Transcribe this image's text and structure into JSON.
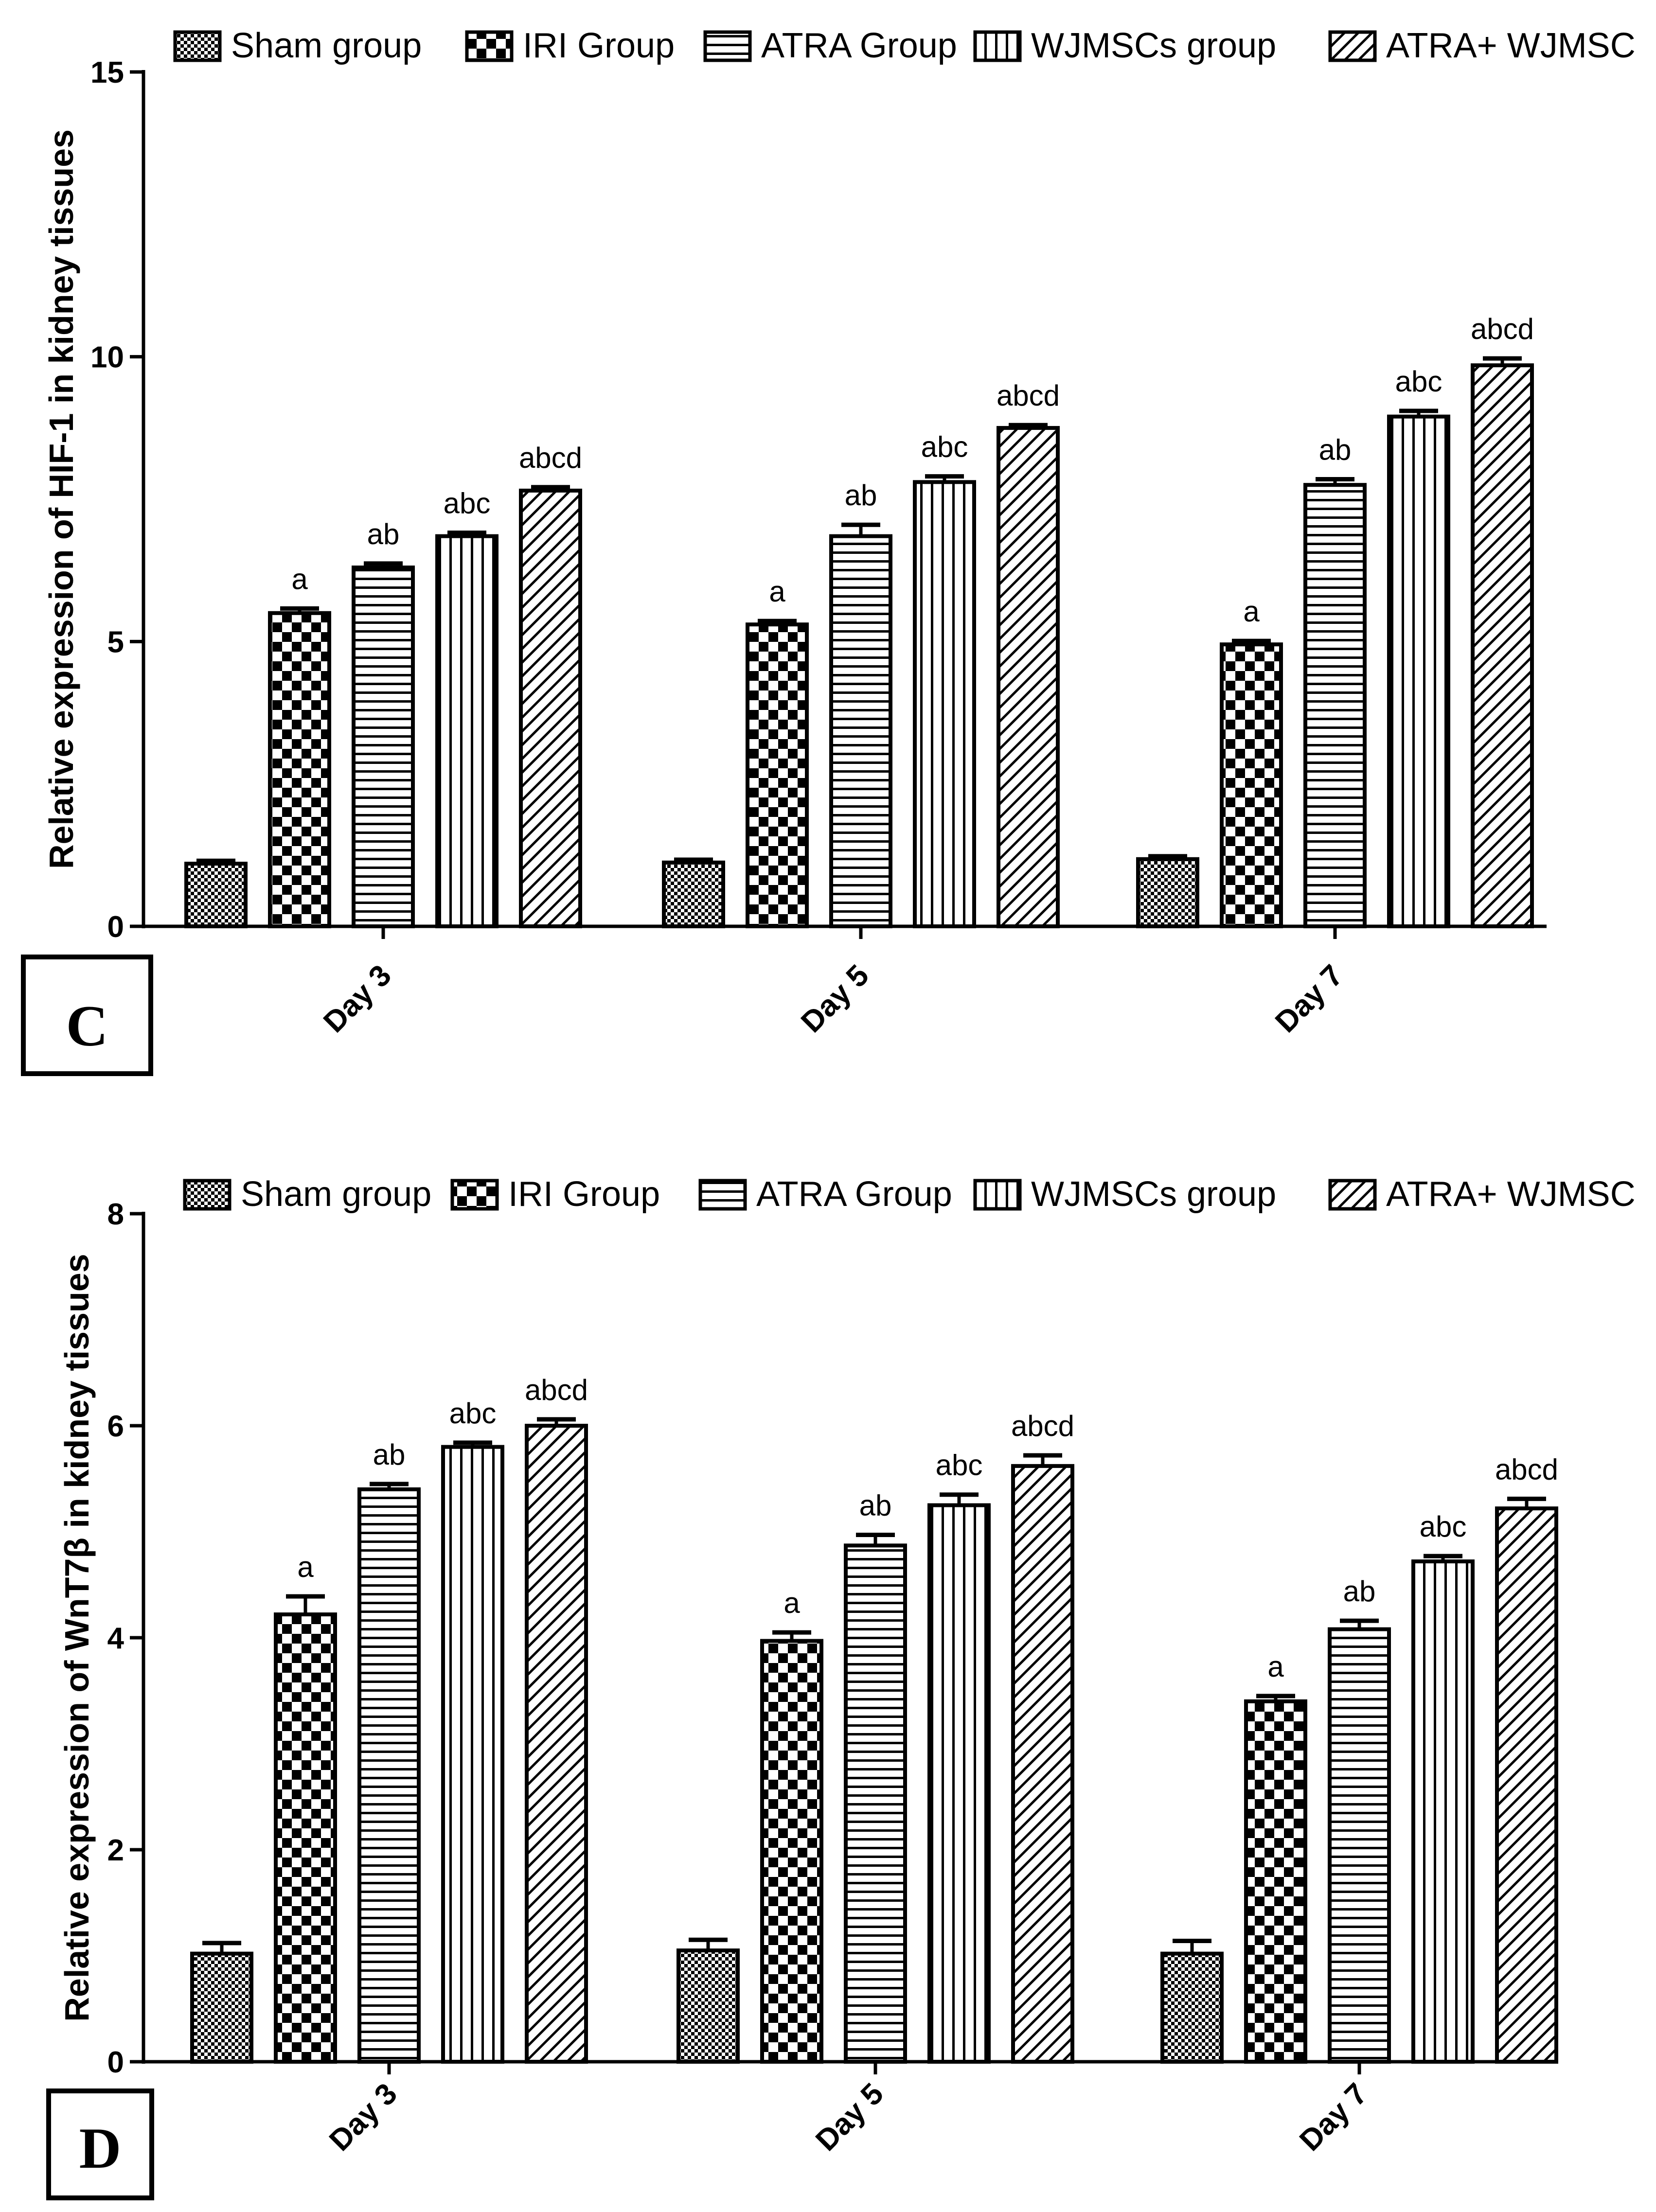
{
  "chart_data": [
    {
      "type": "bar",
      "panel_label": "C",
      "title": "",
      "xlabel": "",
      "ylabel": "Relative expression of HIF-1  in kidney tissues",
      "ylim": [
        0,
        15
      ],
      "yticks": [
        0,
        5,
        10,
        15
      ],
      "legend_position": "top",
      "categories": [
        "Day 3",
        "Day 5",
        "Day 7"
      ],
      "series": [
        {
          "name": "Sham group",
          "pattern": "checker-small",
          "values": [
            1.1,
            1.12,
            1.18
          ],
          "errors": [
            0.05,
            0.05,
            0.05
          ],
          "annotations": [
            "",
            "",
            ""
          ]
        },
        {
          "name": "IRI Group",
          "pattern": "checker-large",
          "values": [
            5.5,
            5.3,
            4.95
          ],
          "errors": [
            0.08,
            0.06,
            0.06
          ],
          "annotations": [
            "a",
            "a",
            "a"
          ]
        },
        {
          "name": "ATRA Group",
          "pattern": "horizontal",
          "values": [
            6.3,
            6.85,
            7.75
          ],
          "errors": [
            0.07,
            0.2,
            0.1
          ],
          "annotations": [
            "ab",
            "ab",
            "ab"
          ]
        },
        {
          "name": "WJMSCs group",
          "pattern": "vertical",
          "values": [
            6.85,
            7.8,
            8.95
          ],
          "errors": [
            0.06,
            0.1,
            0.1
          ],
          "annotations": [
            "abc",
            "abc",
            "abc"
          ]
        },
        {
          "name": "ATRA+ WJMSC",
          "pattern": "diagonal",
          "values": [
            7.65,
            8.75,
            9.85
          ],
          "errors": [
            0.06,
            0.05,
            0.12
          ],
          "annotations": [
            "abcd",
            "abcd",
            "abcd"
          ]
        }
      ]
    },
    {
      "type": "bar",
      "panel_label": "D",
      "title": "",
      "xlabel": "",
      "ylabel": "Relative expression of WnT7β in kidney tissues",
      "ylim": [
        0,
        8
      ],
      "yticks": [
        0,
        2,
        4,
        6,
        8
      ],
      "legend_position": "top",
      "categories": [
        "Day 3",
        "Day 5",
        "Day 7"
      ],
      "series": [
        {
          "name": "Sham group",
          "pattern": "checker-small",
          "values": [
            1.02,
            1.05,
            1.02
          ],
          "errors": [
            0.1,
            0.1,
            0.12
          ],
          "annotations": [
            "",
            "",
            ""
          ]
        },
        {
          "name": "IRI Group",
          "pattern": "checker-large",
          "values": [
            4.22,
            3.97,
            3.4
          ],
          "errors": [
            0.17,
            0.08,
            0.05
          ],
          "annotations": [
            "a",
            "a",
            "a"
          ]
        },
        {
          "name": "ATRA Group",
          "pattern": "horizontal",
          "values": [
            5.4,
            4.87,
            4.08
          ],
          "errors": [
            0.05,
            0.1,
            0.08
          ],
          "annotations": [
            "ab",
            "ab",
            "ab"
          ]
        },
        {
          "name": "WJMSCs group",
          "pattern": "vertical",
          "values": [
            5.8,
            5.25,
            4.72
          ],
          "errors": [
            0.04,
            0.1,
            0.05
          ],
          "annotations": [
            "abc",
            "abc",
            "abc"
          ]
        },
        {
          "name": "ATRA+ WJMSC",
          "pattern": "diagonal",
          "values": [
            6.0,
            5.62,
            5.22
          ],
          "errors": [
            0.06,
            0.1,
            0.09
          ],
          "annotations": [
            "abcd",
            "abcd",
            "abcd"
          ]
        }
      ]
    }
  ]
}
